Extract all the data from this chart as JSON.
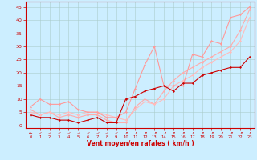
{
  "title": "",
  "xlabel": "Vent moyen/en rafales ( km/h )",
  "ylabel": "",
  "bg_color": "#cceeff",
  "grid_color": "#aacccc",
  "axis_color": "#cc0000",
  "xlabel_color": "#cc0000",
  "tick_color": "#cc0000",
  "ylim": [
    -1,
    47
  ],
  "xlim": [
    -0.5,
    23.5
  ],
  "yticks": [
    0,
    5,
    10,
    15,
    20,
    25,
    30,
    35,
    40,
    45
  ],
  "xticks": [
    0,
    1,
    2,
    3,
    4,
    5,
    6,
    7,
    8,
    9,
    10,
    11,
    12,
    13,
    14,
    15,
    16,
    17,
    18,
    19,
    20,
    21,
    22,
    23
  ],
  "line1_x": [
    0,
    1,
    2,
    3,
    4,
    5,
    6,
    7,
    8,
    9,
    10,
    11,
    12,
    13,
    14,
    15,
    16,
    17,
    18,
    19,
    20,
    21,
    22,
    23
  ],
  "line1_y": [
    4,
    3,
    3,
    2,
    2,
    1,
    2,
    3,
    1,
    1,
    10,
    11,
    13,
    14,
    15,
    13,
    16,
    16,
    19,
    20,
    21,
    22,
    22,
    26
  ],
  "line1_color": "#cc0000",
  "line1_lw": 0.8,
  "line2_x": [
    0,
    1,
    2,
    3,
    4,
    5,
    6,
    7,
    8,
    9,
    10,
    11,
    12,
    13,
    14,
    15,
    16,
    17,
    18,
    19,
    20,
    21,
    22,
    23
  ],
  "line2_y": [
    7,
    10,
    8,
    8,
    9,
    6,
    5,
    5,
    3,
    3,
    5,
    14,
    23,
    30,
    15,
    15,
    15,
    27,
    26,
    32,
    31,
    41,
    42,
    45
  ],
  "line2_color": "#ff9999",
  "line2_lw": 0.8,
  "line3_x": [
    0,
    1,
    2,
    3,
    4,
    5,
    6,
    7,
    8,
    9,
    10,
    11,
    12,
    13,
    14,
    15,
    16,
    17,
    18,
    19,
    20,
    21,
    22,
    23
  ],
  "line3_y": [
    6,
    4,
    5,
    3,
    4,
    3,
    4,
    4,
    2,
    1,
    1,
    7,
    10,
    8,
    13,
    17,
    20,
    22,
    24,
    26,
    28,
    30,
    36,
    44
  ],
  "line3_color": "#ffaaaa",
  "line3_lw": 0.8,
  "line4_x": [
    0,
    1,
    2,
    3,
    4,
    5,
    6,
    7,
    8,
    9,
    10,
    11,
    12,
    13,
    14,
    15,
    16,
    17,
    18,
    19,
    20,
    21,
    22,
    23
  ],
  "line4_y": [
    5,
    4,
    5,
    4,
    5,
    4,
    5,
    5,
    4,
    3,
    2,
    6,
    9,
    8,
    10,
    15,
    17,
    19,
    22,
    24,
    26,
    28,
    32,
    41
  ],
  "line4_color": "#ffbbbb",
  "line4_lw": 0.8,
  "marker": "D",
  "marker_size": 1.5,
  "arrow_labels": [
    "←",
    "↙",
    "↙",
    "↙",
    "↙",
    "↙",
    "↙",
    "↙",
    "↙",
    "↙",
    "↗",
    "↗",
    "↗",
    "↗",
    "↗",
    "↗",
    "↗",
    "↗",
    "↗",
    "↗",
    "↗",
    "↗",
    "↗",
    "↗"
  ]
}
